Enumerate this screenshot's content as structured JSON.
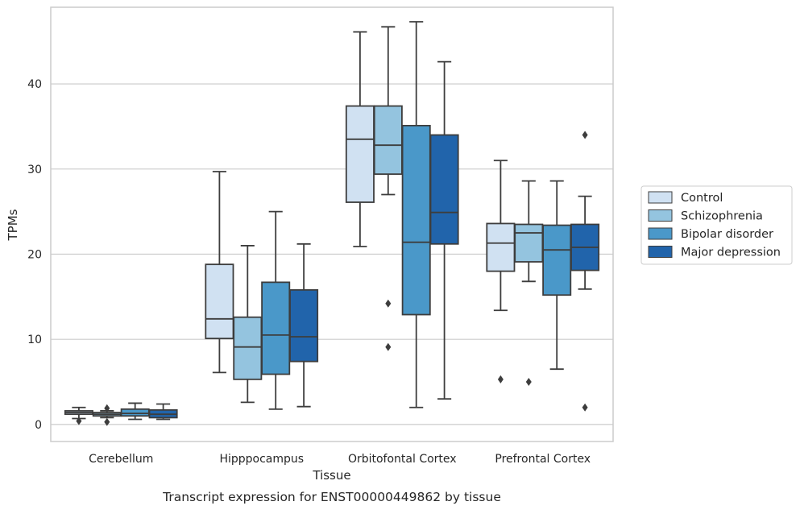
{
  "chart_data": {
    "type": "box",
    "caption": "Transcript expression for ENST00000449862 by tissue",
    "xlabel": "Tissue",
    "ylabel": "TPMs",
    "ylim": [
      -2,
      49
    ],
    "yticks": [
      0,
      10,
      20,
      30,
      40
    ],
    "grid": "horizontal",
    "legend_position": "right",
    "categories": [
      "Cerebellum",
      "Hipppocampus",
      "Orbitofontal Cortex",
      "Prefrontal Cortex"
    ],
    "series": [
      {
        "name": "Control",
        "color": "#d0e1f2",
        "boxes": [
          {
            "whisker_low": 0.7,
            "q1": 1.2,
            "median": 1.4,
            "q3": 1.6,
            "whisker_high": 2.0,
            "outliers": [
              0.4
            ]
          },
          {
            "whisker_low": 6.1,
            "q1": 10.1,
            "median": 12.4,
            "q3": 18.8,
            "whisker_high": 29.7,
            "outliers": []
          },
          {
            "whisker_low": 20.9,
            "q1": 26.1,
            "median": 33.5,
            "q3": 37.4,
            "whisker_high": 46.1,
            "outliers": []
          },
          {
            "whisker_low": 13.4,
            "q1": 18.0,
            "median": 21.3,
            "q3": 23.6,
            "whisker_high": 31.0,
            "outliers": [
              5.3
            ]
          }
        ]
      },
      {
        "name": "Schizophrenia",
        "color": "#94c4df",
        "boxes": [
          {
            "whisker_low": 0.8,
            "q1": 1.0,
            "median": 1.2,
            "q3": 1.4,
            "whisker_high": 1.6,
            "outliers": [
              0.3,
              1.9
            ]
          },
          {
            "whisker_low": 2.6,
            "q1": 5.3,
            "median": 9.1,
            "q3": 12.6,
            "whisker_high": 21.0,
            "outliers": []
          },
          {
            "whisker_low": 27.0,
            "q1": 29.4,
            "median": 32.8,
            "q3": 37.4,
            "whisker_high": 46.7,
            "outliers": [
              14.2,
              9.1
            ]
          },
          {
            "whisker_low": 16.8,
            "q1": 19.1,
            "median": 22.5,
            "q3": 23.5,
            "whisker_high": 28.6,
            "outliers": [
              5.0
            ]
          }
        ]
      },
      {
        "name": "Bipolar disorder",
        "color": "#4a98c9",
        "boxes": [
          {
            "whisker_low": 0.6,
            "q1": 1.0,
            "median": 1.3,
            "q3": 1.8,
            "whisker_high": 2.5,
            "outliers": []
          },
          {
            "whisker_low": 1.8,
            "q1": 5.9,
            "median": 10.5,
            "q3": 16.7,
            "whisker_high": 25.0,
            "outliers": []
          },
          {
            "whisker_low": 2.0,
            "q1": 12.9,
            "median": 21.4,
            "q3": 35.1,
            "whisker_high": 47.3,
            "outliers": []
          },
          {
            "whisker_low": 6.5,
            "q1": 15.2,
            "median": 20.5,
            "q3": 23.4,
            "whisker_high": 28.6,
            "outliers": []
          }
        ]
      },
      {
        "name": "Major depression",
        "color": "#2164ab",
        "boxes": [
          {
            "whisker_low": 0.6,
            "q1": 0.8,
            "median": 1.2,
            "q3": 1.7,
            "whisker_high": 2.4,
            "outliers": []
          },
          {
            "whisker_low": 2.1,
            "q1": 7.4,
            "median": 10.3,
            "q3": 15.8,
            "whisker_high": 21.2,
            "outliers": []
          },
          {
            "whisker_low": 3.0,
            "q1": 21.2,
            "median": 24.9,
            "q3": 34.0,
            "whisker_high": 42.6,
            "outliers": []
          },
          {
            "whisker_low": 15.9,
            "q1": 18.1,
            "median": 20.8,
            "q3": 23.5,
            "whisker_high": 26.8,
            "outliers": [
              34.0,
              2.0
            ]
          }
        ]
      }
    ]
  }
}
